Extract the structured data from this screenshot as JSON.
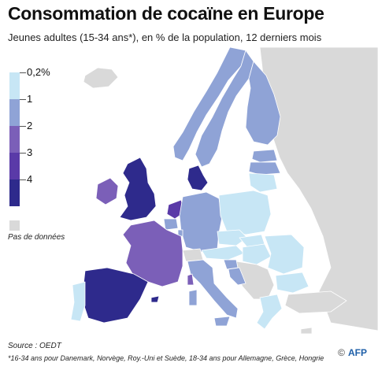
{
  "title": "Consommation de cocaïne en Europe",
  "subtitle": "Jeunes adultes (15-34 ans*), en % de la population, 12 derniers mois",
  "legend": {
    "items": [
      {
        "label": "0,2%",
        "color": "#c7e6f5"
      },
      {
        "label": "1",
        "color": "#8fa3d6"
      },
      {
        "label": "2",
        "color": "#7b5fb8"
      },
      {
        "label": "3",
        "color": "#5a3aa8"
      },
      {
        "label": "4",
        "color": "#2e2a8c"
      }
    ],
    "no_data_label": "Pas de données",
    "no_data_color": "#d9d9d9"
  },
  "colors": {
    "cat_light": "#c7e6f5",
    "cat_1": "#8fa3d6",
    "cat_2": "#7b5fb8",
    "cat_3": "#5a3aa8",
    "cat_4": "#2e2a8c",
    "no_data": "#d9d9d9",
    "sea": "#ffffff",
    "border": "#ffffff"
  },
  "source": "Source : OEDT",
  "footnote": "*16-34 ans pour Danemark, Norvège, Roy.-Uni et Suède, 18-34 ans pour Allemagne, Grèce, Hongrie",
  "credit": {
    "symbol": "©",
    "brand": "AFP"
  }
}
